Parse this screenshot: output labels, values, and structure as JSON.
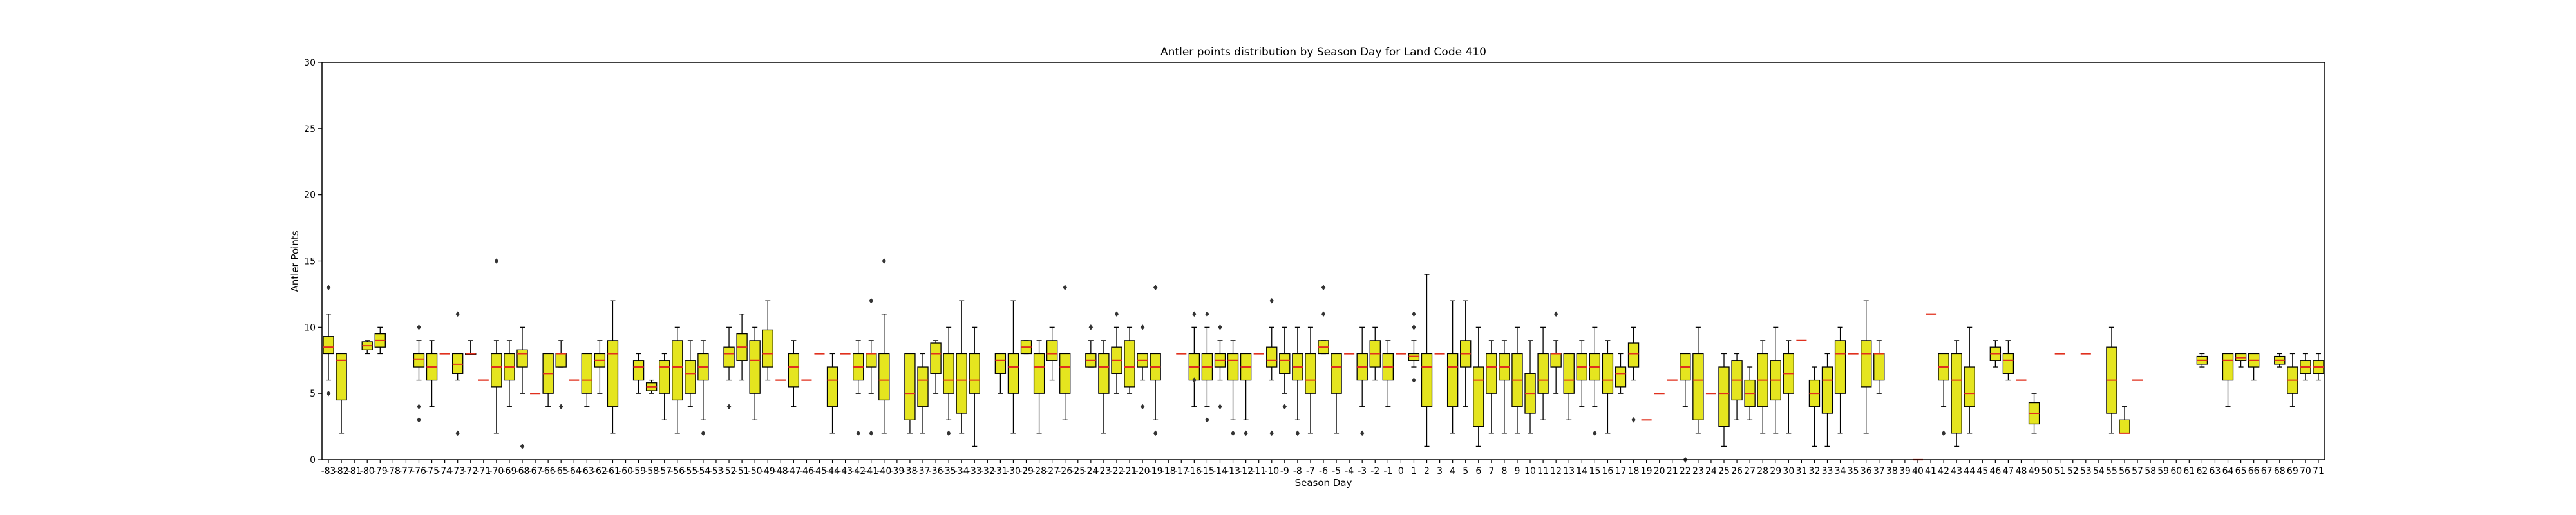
{
  "chart_data": {
    "type": "box",
    "title": "Antler points distribution by Season Day for Land Code 410",
    "xlabel": "Season Day",
    "ylabel": "Antler Points",
    "ylim": [
      0,
      30
    ],
    "yticks": [
      0,
      5,
      10,
      15,
      20,
      25,
      30
    ],
    "x_range": [
      -83,
      71
    ],
    "grid": false,
    "colors": {
      "box_fill": "#e5e51f",
      "median": "#e0301e",
      "outline": "#000000"
    },
    "boxes": [
      {
        "day": -83,
        "q1": 8,
        "med": 8.5,
        "q3": 9.3,
        "wlo": 6,
        "whi": 11,
        "fl": [
          13,
          5
        ]
      },
      {
        "day": -82,
        "q1": 4.5,
        "med": 7.5,
        "q3": 8,
        "wlo": 2,
        "whi": 8,
        "fl": []
      },
      {
        "day": -80,
        "q1": 8.3,
        "med": 8.6,
        "q3": 8.9,
        "wlo": 8,
        "whi": 9,
        "fl": []
      },
      {
        "day": -79,
        "q1": 8.5,
        "med": 9,
        "q3": 9.5,
        "wlo": 8,
        "whi": 10,
        "fl": []
      },
      {
        "day": -76,
        "q1": 7,
        "med": 7.6,
        "q3": 8,
        "wlo": 6,
        "whi": 9,
        "fl": [
          10,
          4,
          3
        ]
      },
      {
        "day": -75,
        "q1": 6,
        "med": 7,
        "q3": 8,
        "wlo": 4,
        "whi": 9,
        "fl": []
      },
      {
        "day": -74,
        "med": 8,
        "single": true
      },
      {
        "day": -73,
        "q1": 6.5,
        "med": 7.2,
        "q3": 8,
        "wlo": 6,
        "whi": 8,
        "fl": [
          11,
          2
        ]
      },
      {
        "day": -72,
        "q1": 8,
        "med": 8,
        "q3": 8,
        "wlo": 8,
        "whi": 9,
        "fl": []
      },
      {
        "day": -71,
        "med": 6,
        "single": true
      },
      {
        "day": -70,
        "q1": 5.5,
        "med": 7,
        "q3": 8,
        "wlo": 2,
        "whi": 9,
        "fl": [
          15
        ]
      },
      {
        "day": -69,
        "q1": 6,
        "med": 7,
        "q3": 8,
        "wlo": 4,
        "whi": 9,
        "fl": []
      },
      {
        "day": -68,
        "q1": 7,
        "med": 8,
        "q3": 8.3,
        "wlo": 5,
        "whi": 10,
        "fl": [
          1
        ]
      },
      {
        "day": -67,
        "med": 5,
        "single": true
      },
      {
        "day": -66,
        "q1": 5,
        "med": 6.5,
        "q3": 8,
        "wlo": 4,
        "whi": 8,
        "fl": []
      },
      {
        "day": -65,
        "q1": 7,
        "med": 8,
        "q3": 8,
        "wlo": 7,
        "whi": 9,
        "fl": [
          4
        ]
      },
      {
        "day": -64,
        "med": 6,
        "single": true
      },
      {
        "day": -63,
        "q1": 5,
        "med": 6,
        "q3": 8,
        "wlo": 4,
        "whi": 8,
        "fl": []
      },
      {
        "day": -62,
        "q1": 7,
        "med": 7.5,
        "q3": 8,
        "wlo": 5,
        "whi": 9,
        "fl": []
      },
      {
        "day": -61,
        "q1": 4,
        "med": 8,
        "q3": 9,
        "wlo": 2,
        "whi": 12,
        "fl": []
      },
      {
        "day": -59,
        "q1": 6,
        "med": 7,
        "q3": 7.5,
        "wlo": 5,
        "whi": 8,
        "fl": []
      },
      {
        "day": -58,
        "q1": 5.2,
        "med": 5.5,
        "q3": 5.8,
        "wlo": 5,
        "whi": 6,
        "fl": []
      },
      {
        "day": -57,
        "q1": 5,
        "med": 7,
        "q3": 7.5,
        "wlo": 3,
        "whi": 8,
        "fl": []
      },
      {
        "day": -56,
        "q1": 4.5,
        "med": 7,
        "q3": 9,
        "wlo": 2,
        "whi": 10,
        "fl": []
      },
      {
        "day": -55,
        "q1": 5,
        "med": 6.5,
        "q3": 7.5,
        "wlo": 4,
        "whi": 9,
        "fl": []
      },
      {
        "day": -54,
        "q1": 6,
        "med": 7,
        "q3": 8,
        "wlo": 3,
        "whi": 9,
        "fl": [
          2
        ]
      },
      {
        "day": -52,
        "q1": 7,
        "med": 8,
        "q3": 8.5,
        "wlo": 6,
        "whi": 10,
        "fl": [
          4
        ]
      },
      {
        "day": -51,
        "q1": 7.5,
        "med": 8.5,
        "q3": 9.5,
        "wlo": 6,
        "whi": 11,
        "fl": []
      },
      {
        "day": -50,
        "q1": 5,
        "med": 7.5,
        "q3": 9,
        "wlo": 3,
        "whi": 10,
        "fl": []
      },
      {
        "day": -49,
        "q1": 7,
        "med": 8,
        "q3": 9.8,
        "wlo": 6,
        "whi": 12,
        "fl": []
      },
      {
        "day": -48,
        "med": 6,
        "single": true
      },
      {
        "day": -47,
        "q1": 5.5,
        "med": 7,
        "q3": 8,
        "wlo": 4,
        "whi": 9,
        "fl": []
      },
      {
        "day": -46,
        "med": 6,
        "single": true
      },
      {
        "day": -45,
        "med": 8,
        "single": true
      },
      {
        "day": -44,
        "q1": 4,
        "med": 6,
        "q3": 7,
        "wlo": 2,
        "whi": 8,
        "fl": []
      },
      {
        "day": -43,
        "med": 8,
        "single": true
      },
      {
        "day": -42,
        "q1": 6,
        "med": 7,
        "q3": 8,
        "wlo": 5,
        "whi": 9,
        "fl": [
          2
        ]
      },
      {
        "day": -41,
        "q1": 7,
        "med": 8,
        "q3": 8,
        "wlo": 5,
        "whi": 9,
        "fl": [
          12,
          2
        ]
      },
      {
        "day": -40,
        "q1": 4.5,
        "med": 6,
        "q3": 8,
        "wlo": 2,
        "whi": 11,
        "fl": [
          15
        ]
      },
      {
        "day": -38,
        "q1": 3,
        "med": 5,
        "q3": 8,
        "wlo": 2,
        "whi": 8,
        "fl": []
      },
      {
        "day": -37,
        "q1": 4,
        "med": 6,
        "q3": 7,
        "wlo": 2,
        "whi": 8,
        "fl": []
      },
      {
        "day": -36,
        "q1": 6.5,
        "med": 8,
        "q3": 8.8,
        "wlo": 5,
        "whi": 9,
        "fl": []
      },
      {
        "day": -35,
        "q1": 5,
        "med": 6,
        "q3": 8,
        "wlo": 3,
        "whi": 10,
        "fl": [
          2
        ]
      },
      {
        "day": -34,
        "q1": 3.5,
        "med": 6,
        "q3": 8,
        "wlo": 2,
        "whi": 12,
        "fl": []
      },
      {
        "day": -33,
        "q1": 5,
        "med": 6,
        "q3": 8,
        "wlo": 1,
        "whi": 10,
        "fl": []
      },
      {
        "day": -31,
        "q1": 6.5,
        "med": 7.5,
        "q3": 8,
        "wlo": 5,
        "whi": 8,
        "fl": []
      },
      {
        "day": -30,
        "q1": 5,
        "med": 7,
        "q3": 8,
        "wlo": 2,
        "whi": 12,
        "fl": []
      },
      {
        "day": -29,
        "q1": 8,
        "med": 8.5,
        "q3": 9,
        "wlo": 8,
        "whi": 9,
        "fl": []
      },
      {
        "day": -28,
        "q1": 5,
        "med": 7,
        "q3": 8,
        "wlo": 2,
        "whi": 9,
        "fl": []
      },
      {
        "day": -27,
        "q1": 7.5,
        "med": 8,
        "q3": 9,
        "wlo": 6,
        "whi": 10,
        "fl": []
      },
      {
        "day": -26,
        "q1": 5,
        "med": 7,
        "q3": 8,
        "wlo": 3,
        "whi": 8,
        "fl": [
          13
        ]
      },
      {
        "day": -24,
        "q1": 7,
        "med": 7.5,
        "q3": 8,
        "wlo": 7,
        "whi": 9,
        "fl": [
          10
        ]
      },
      {
        "day": -23,
        "q1": 5,
        "med": 7,
        "q3": 8,
        "wlo": 2,
        "whi": 9,
        "fl": []
      },
      {
        "day": -22,
        "q1": 6.5,
        "med": 7.5,
        "q3": 8.5,
        "wlo": 5,
        "whi": 10,
        "fl": [
          11
        ]
      },
      {
        "day": -21,
        "q1": 5.5,
        "med": 7,
        "q3": 9,
        "wlo": 5,
        "whi": 10,
        "fl": []
      },
      {
        "day": -20,
        "q1": 7,
        "med": 7.5,
        "q3": 8,
        "wlo": 6,
        "whi": 8,
        "fl": [
          10,
          4
        ]
      },
      {
        "day": -19,
        "q1": 6,
        "med": 7,
        "q3": 8,
        "wlo": 3,
        "whi": 8,
        "fl": [
          13,
          2
        ]
      },
      {
        "day": -17,
        "med": 8,
        "single": true
      },
      {
        "day": -16,
        "q1": 6,
        "med": 7,
        "q3": 8,
        "wlo": 4,
        "whi": 10,
        "fl": [
          11,
          6
        ]
      },
      {
        "day": -15,
        "q1": 6,
        "med": 7,
        "q3": 8,
        "wlo": 4,
        "whi": 10,
        "fl": [
          11,
          3
        ]
      },
      {
        "day": -14,
        "q1": 7,
        "med": 7.5,
        "q3": 8,
        "wlo": 6,
        "whi": 9,
        "fl": [
          10,
          4
        ]
      },
      {
        "day": -13,
        "q1": 6,
        "med": 7.5,
        "q3": 8,
        "wlo": 3,
        "whi": 9,
        "fl": [
          2
        ]
      },
      {
        "day": -12,
        "q1": 6,
        "med": 7,
        "q3": 8,
        "wlo": 3,
        "whi": 8,
        "fl": [
          2
        ]
      },
      {
        "day": -11,
        "med": 8,
        "single": true
      },
      {
        "day": -10,
        "q1": 7,
        "med": 7.5,
        "q3": 8.5,
        "wlo": 6,
        "whi": 10,
        "fl": [
          12,
          2
        ]
      },
      {
        "day": -9,
        "q1": 6.5,
        "med": 7.5,
        "q3": 8,
        "wlo": 5,
        "whi": 10,
        "fl": [
          4
        ]
      },
      {
        "day": -8,
        "q1": 6,
        "med": 7,
        "q3": 8,
        "wlo": 3,
        "whi": 10,
        "fl": [
          2
        ]
      },
      {
        "day": -7,
        "q1": 5,
        "med": 6,
        "q3": 8,
        "wlo": 2,
        "whi": 10,
        "fl": []
      },
      {
        "day": -6,
        "q1": 8,
        "med": 8.5,
        "q3": 9,
        "wlo": 8,
        "whi": 9,
        "fl": [
          13,
          11
        ]
      },
      {
        "day": -5,
        "q1": 5,
        "med": 7,
        "q3": 8,
        "wlo": 2,
        "whi": 8,
        "fl": []
      },
      {
        "day": -4,
        "med": 8,
        "single": true
      },
      {
        "day": -3,
        "q1": 6,
        "med": 7,
        "q3": 8,
        "wlo": 4,
        "whi": 10,
        "fl": [
          2
        ]
      },
      {
        "day": -2,
        "q1": 7,
        "med": 8,
        "q3": 9,
        "wlo": 6,
        "whi": 10,
        "fl": []
      },
      {
        "day": -1,
        "q1": 6,
        "med": 7,
        "q3": 8,
        "wlo": 4,
        "whi": 9,
        "fl": []
      },
      {
        "day": 0,
        "med": 8,
        "single": true
      },
      {
        "day": 1,
        "q1": 7.5,
        "med": 7.8,
        "q3": 8,
        "wlo": 7,
        "whi": 9,
        "fl": [
          11,
          10,
          6
        ]
      },
      {
        "day": 2,
        "q1": 4,
        "med": 7,
        "q3": 8,
        "wlo": 1,
        "whi": 14,
        "fl": []
      },
      {
        "day": 3,
        "med": 8,
        "single": true
      },
      {
        "day": 4,
        "q1": 4,
        "med": 7,
        "q3": 8,
        "wlo": 2,
        "whi": 12,
        "fl": []
      },
      {
        "day": 5,
        "q1": 7,
        "med": 8,
        "q3": 9,
        "wlo": 4,
        "whi": 12,
        "fl": []
      },
      {
        "day": 6,
        "q1": 2.5,
        "med": 6,
        "q3": 7,
        "wlo": 1,
        "whi": 10,
        "fl": []
      },
      {
        "day": 7,
        "q1": 5,
        "med": 7,
        "q3": 8,
        "wlo": 2,
        "whi": 9,
        "fl": []
      },
      {
        "day": 8,
        "q1": 6,
        "med": 7,
        "q3": 8,
        "wlo": 2,
        "whi": 9,
        "fl": []
      },
      {
        "day": 9,
        "q1": 4,
        "med": 6,
        "q3": 8,
        "wlo": 2,
        "whi": 10,
        "fl": []
      },
      {
        "day": 10,
        "q1": 3.5,
        "med": 5,
        "q3": 6.5,
        "wlo": 2,
        "whi": 9,
        "fl": []
      },
      {
        "day": 11,
        "q1": 5,
        "med": 6,
        "q3": 8,
        "wlo": 3,
        "whi": 10,
        "fl": []
      },
      {
        "day": 12,
        "q1": 7,
        "med": 8,
        "q3": 8,
        "wlo": 5,
        "whi": 9,
        "fl": [
          11
        ]
      },
      {
        "day": 13,
        "q1": 5,
        "med": 6,
        "q3": 8,
        "wlo": 3,
        "whi": 8,
        "fl": []
      },
      {
        "day": 14,
        "q1": 6,
        "med": 7,
        "q3": 8,
        "wlo": 4,
        "whi": 9,
        "fl": []
      },
      {
        "day": 15,
        "q1": 6,
        "med": 7,
        "q3": 8,
        "wlo": 4,
        "whi": 10,
        "fl": [
          2
        ]
      },
      {
        "day": 16,
        "q1": 5,
        "med": 6,
        "q3": 8,
        "wlo": 2,
        "whi": 9,
        "fl": []
      },
      {
        "day": 17,
        "q1": 5.5,
        "med": 6.5,
        "q3": 7,
        "wlo": 5,
        "whi": 8,
        "fl": []
      },
      {
        "day": 18,
        "q1": 7,
        "med": 8,
        "q3": 8.8,
        "wlo": 6,
        "whi": 10,
        "fl": [
          3
        ]
      },
      {
        "day": 19,
        "med": 3,
        "single": true
      },
      {
        "day": 20,
        "med": 5,
        "single": true
      },
      {
        "day": 21,
        "med": 6,
        "single": true
      },
      {
        "day": 22,
        "q1": 6,
        "med": 7,
        "q3": 8,
        "wlo": 4,
        "whi": 8,
        "fl": [
          0
        ]
      },
      {
        "day": 23,
        "q1": 3,
        "med": 6,
        "q3": 8,
        "wlo": 2,
        "whi": 10,
        "fl": []
      },
      {
        "day": 24,
        "med": 5,
        "single": true
      },
      {
        "day": 25,
        "q1": 2.5,
        "med": 5,
        "q3": 7,
        "wlo": 1,
        "whi": 8,
        "fl": []
      },
      {
        "day": 26,
        "q1": 4.5,
        "med": 6,
        "q3": 7.5,
        "wlo": 3,
        "whi": 8,
        "fl": []
      },
      {
        "day": 27,
        "q1": 4,
        "med": 5,
        "q3": 6,
        "wlo": 3,
        "whi": 7,
        "fl": []
      },
      {
        "day": 28,
        "q1": 4,
        "med": 6,
        "q3": 8,
        "wlo": 2,
        "whi": 9,
        "fl": []
      },
      {
        "day": 29,
        "q1": 4.5,
        "med": 6,
        "q3": 7.5,
        "wlo": 2,
        "whi": 10,
        "fl": []
      },
      {
        "day": 30,
        "q1": 5,
        "med": 6.5,
        "q3": 8,
        "wlo": 2,
        "whi": 9,
        "fl": []
      },
      {
        "day": 31,
        "med": 9,
        "single": true
      },
      {
        "day": 32,
        "q1": 4,
        "med": 5,
        "q3": 6,
        "wlo": 1,
        "whi": 7,
        "fl": []
      },
      {
        "day": 33,
        "q1": 3.5,
        "med": 6,
        "q3": 7,
        "wlo": 1,
        "whi": 8,
        "fl": []
      },
      {
        "day": 34,
        "q1": 5,
        "med": 8,
        "q3": 9,
        "wlo": 2,
        "whi": 10,
        "fl": []
      },
      {
        "day": 35,
        "med": 8,
        "single": true
      },
      {
        "day": 36,
        "q1": 5.5,
        "med": 8,
        "q3": 9,
        "wlo": 2,
        "whi": 12,
        "fl": []
      },
      {
        "day": 37,
        "q1": 6,
        "med": 8,
        "q3": 8,
        "wlo": 5,
        "whi": 9,
        "fl": []
      },
      {
        "day": 40,
        "med": 0,
        "single": true
      },
      {
        "day": 41,
        "med": 11,
        "single": true
      },
      {
        "day": 42,
        "q1": 6,
        "med": 7,
        "q3": 8,
        "wlo": 4,
        "whi": 8,
        "fl": [
          2
        ]
      },
      {
        "day": 43,
        "q1": 2,
        "med": 6,
        "q3": 8,
        "wlo": 1,
        "whi": 9,
        "fl": []
      },
      {
        "day": 44,
        "q1": 4,
        "med": 5,
        "q3": 7,
        "wlo": 2,
        "whi": 10,
        "fl": []
      },
      {
        "day": 46,
        "q1": 7.5,
        "med": 8,
        "q3": 8.5,
        "wlo": 7,
        "whi": 9,
        "fl": []
      },
      {
        "day": 47,
        "q1": 6.5,
        "med": 7.5,
        "q3": 8,
        "wlo": 6,
        "whi": 9,
        "fl": []
      },
      {
        "day": 48,
        "med": 6,
        "single": true
      },
      {
        "day": 49,
        "q1": 2.7,
        "med": 3.5,
        "q3": 4.3,
        "wlo": 2,
        "whi": 5,
        "fl": []
      },
      {
        "day": 51,
        "med": 8,
        "single": true
      },
      {
        "day": 53,
        "med": 8,
        "single": true
      },
      {
        "day": 55,
        "q1": 3.5,
        "med": 6,
        "q3": 8.5,
        "wlo": 2,
        "whi": 10,
        "fl": []
      },
      {
        "day": 56,
        "q1": 2,
        "med": 2,
        "q3": 3,
        "wlo": 2,
        "whi": 4,
        "fl": []
      },
      {
        "day": 57,
        "med": 6,
        "single": true
      },
      {
        "day": 62,
        "q1": 7.2,
        "med": 7.5,
        "q3": 7.8,
        "wlo": 7,
        "whi": 8,
        "fl": []
      },
      {
        "day": 64,
        "q1": 6,
        "med": 7.5,
        "q3": 8,
        "wlo": 4,
        "whi": 8,
        "fl": []
      },
      {
        "day": 65,
        "q1": 7.5,
        "med": 7.7,
        "q3": 8,
        "wlo": 7,
        "whi": 8,
        "fl": []
      },
      {
        "day": 66,
        "q1": 7,
        "med": 7.5,
        "q3": 8,
        "wlo": 6,
        "whi": 8,
        "fl": []
      },
      {
        "day": 68,
        "q1": 7.2,
        "med": 7.5,
        "q3": 7.8,
        "wlo": 7,
        "whi": 8,
        "fl": []
      },
      {
        "day": 69,
        "q1": 5,
        "med": 6,
        "q3": 7,
        "wlo": 4,
        "whi": 8,
        "fl": []
      },
      {
        "day": 70,
        "q1": 6.5,
        "med": 7,
        "q3": 7.5,
        "wlo": 6,
        "whi": 8,
        "fl": []
      },
      {
        "day": 71,
        "q1": 6.5,
        "med": 7,
        "q3": 7.5,
        "wlo": 6,
        "whi": 8,
        "fl": []
      }
    ]
  }
}
